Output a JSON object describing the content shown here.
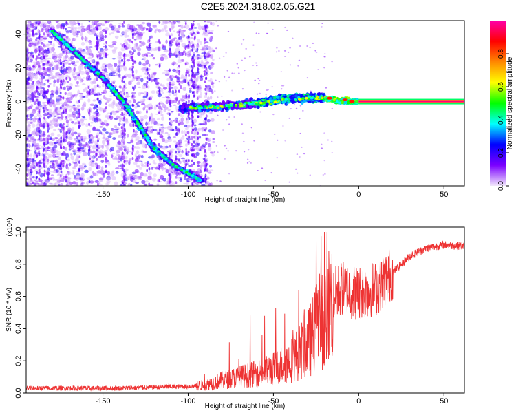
{
  "title": "C2E5.2024.318.02.05.G21",
  "chart_data": [
    {
      "type": "heatmap",
      "xlabel": "Height of straight line (km)",
      "ylabel": "Frequency (Hz)",
      "xlim": [
        -195,
        62
      ],
      "ylim": [
        -50,
        48
      ],
      "xticks": [
        -150,
        -100,
        -50,
        0,
        50
      ],
      "yticks": [
        -40,
        -20,
        0,
        20,
        40
      ],
      "colorbar": {
        "label": "Normalized spectral amplitude",
        "range": [
          0,
          1
        ],
        "ticks": [
          "0.0",
          "0.2",
          "0.4",
          "0.6",
          "0.8"
        ],
        "colors": [
          "#f1e6fb",
          "#7b00ff",
          "#0000ff",
          "#00ffff",
          "#00ff00",
          "#ffff00",
          "#ff8800",
          "#ff0000",
          "#ff00aa"
        ]
      },
      "features": [
        {
          "name": "descending-trace-1",
          "points": [
            [
              -180,
              42
            ],
            [
              -165,
              28
            ],
            [
              -150,
              14
            ],
            [
              -138,
              0
            ],
            [
              -130,
              -12
            ]
          ]
        },
        {
          "name": "descending-trace-2",
          "points": [
            [
              -130,
              -12
            ],
            [
              -120,
              -28
            ],
            [
              -108,
              -38
            ],
            [
              -92,
              -47
            ]
          ]
        },
        {
          "name": "main-signal",
          "points": [
            [
              -105,
              -4
            ],
            [
              -80,
              -3
            ],
            [
              -60,
              -1
            ],
            [
              -40,
              2
            ],
            [
              -20,
              2
            ],
            [
              -10,
              0
            ],
            [
              0,
              0
            ],
            [
              62,
              0
            ]
          ]
        }
      ]
    },
    {
      "type": "line",
      "xlabel": "Height of straight line (km)",
      "ylabel": "SNR (10 * v/v)",
      "y_multiplier": "(x10⁴)",
      "xlim": [
        -195,
        62
      ],
      "ylim": [
        0,
        1.03
      ],
      "xticks": [
        -150,
        -100,
        -50,
        0,
        50
      ],
      "yticks": [
        "0.0",
        "0.2",
        "0.4",
        "0.6",
        "0.8",
        "1.0"
      ],
      "color": "#ee3333",
      "x": [
        -195,
        -170,
        -140,
        -110,
        -100,
        -90,
        -80,
        -70,
        -60,
        -50,
        -40,
        -30,
        -25,
        -20,
        -15,
        -10,
        -5,
        0,
        10,
        20,
        30,
        40,
        50,
        62
      ],
      "y": [
        0.03,
        0.03,
        0.03,
        0.04,
        0.04,
        0.05,
        0.08,
        0.1,
        0.12,
        0.15,
        0.2,
        0.3,
        0.4,
        0.5,
        0.6,
        0.65,
        0.63,
        0.62,
        0.65,
        0.75,
        0.85,
        0.9,
        0.92,
        0.91
      ]
    }
  ]
}
